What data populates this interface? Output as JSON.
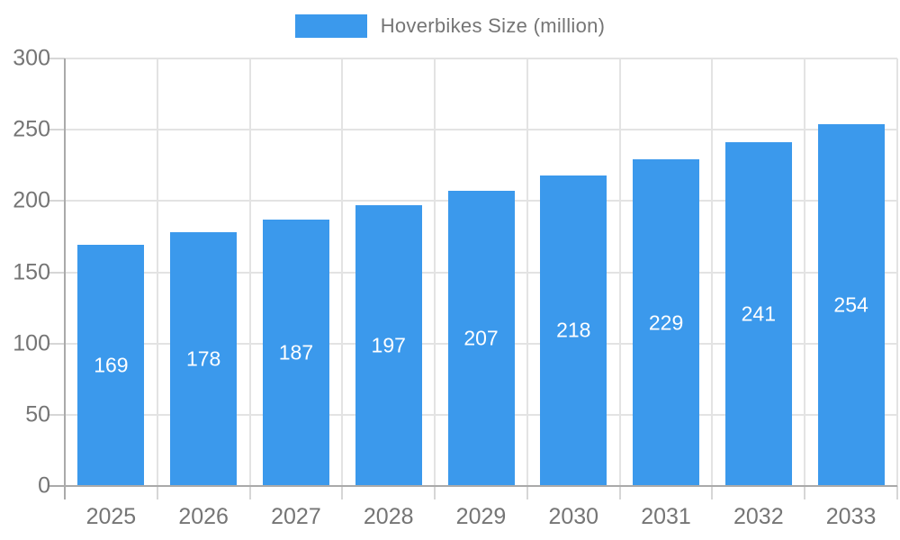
{
  "legend": {
    "label": "Hoverbikes Size (million)"
  },
  "chart_data": {
    "type": "bar",
    "title": "Hoverbikes Size (million)",
    "categories": [
      "2025",
      "2026",
      "2027",
      "2028",
      "2029",
      "2030",
      "2031",
      "2032",
      "2033"
    ],
    "values": [
      169,
      178,
      187,
      197,
      207,
      218,
      229,
      241,
      254
    ],
    "xlabel": "",
    "ylabel": "",
    "ylim": [
      0,
      300
    ],
    "yticks": [
      0,
      50,
      100,
      150,
      200,
      250,
      300
    ],
    "grid": true,
    "legend_position": "top-center",
    "bar_labels": "white, centered inside bars",
    "colors": {
      "bar": "#3B99EC",
      "bar_label_text": "#ffffff",
      "axis_text": "#757575",
      "gridline": "#e3e3e3",
      "tick": "#d6d6d6",
      "axis_line": "#aaaaaa"
    }
  }
}
